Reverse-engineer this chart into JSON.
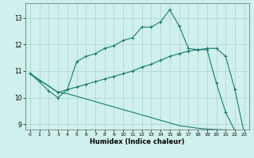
{
  "xlabel": "Humidex (Indice chaleur)",
  "bg_color": "#cff0ec",
  "grid_color": "#aad4cc",
  "line_color": "#1a7a6e",
  "xlim": [
    -0.5,
    23.5
  ],
  "ylim": [
    8.8,
    13.55
  ],
  "yticks": [
    9,
    10,
    11,
    12,
    13
  ],
  "xticks": [
    0,
    1,
    2,
    3,
    4,
    5,
    6,
    7,
    8,
    9,
    10,
    11,
    12,
    13,
    14,
    15,
    16,
    17,
    18,
    19,
    20,
    21,
    22,
    23
  ],
  "line1_x": [
    0,
    1,
    2,
    3,
    4,
    5,
    6,
    7,
    8,
    9,
    10,
    11,
    12,
    13,
    14,
    15,
    16,
    17,
    18,
    19,
    20,
    21,
    22,
    23
  ],
  "line1_y": [
    10.9,
    10.6,
    10.25,
    10.0,
    10.3,
    11.35,
    11.55,
    11.65,
    11.85,
    11.95,
    12.15,
    12.25,
    12.65,
    12.65,
    12.85,
    13.3,
    12.7,
    11.85,
    11.8,
    11.8,
    10.55,
    9.45,
    8.75,
    8.65
  ],
  "line2_x": [
    0,
    3,
    4,
    5,
    6,
    7,
    8,
    9,
    10,
    11,
    12,
    13,
    14,
    15,
    16,
    17,
    18,
    19,
    20,
    21,
    22,
    23
  ],
  "line2_y": [
    10.9,
    10.2,
    10.3,
    10.4,
    10.5,
    10.6,
    10.7,
    10.8,
    10.9,
    11.0,
    11.15,
    11.25,
    11.4,
    11.55,
    11.65,
    11.75,
    11.8,
    11.85,
    11.85,
    11.55,
    10.3,
    8.65
  ],
  "line3_x": [
    0,
    3,
    4,
    5,
    6,
    7,
    8,
    9,
    10,
    11,
    12,
    13,
    14,
    15,
    16,
    17,
    18,
    19,
    20,
    21,
    22,
    23
  ],
  "line3_y": [
    10.9,
    10.2,
    10.15,
    10.05,
    9.95,
    9.85,
    9.75,
    9.65,
    9.55,
    9.45,
    9.35,
    9.25,
    9.15,
    9.05,
    8.95,
    8.9,
    8.85,
    8.82,
    8.8,
    8.79,
    8.78,
    8.65
  ]
}
